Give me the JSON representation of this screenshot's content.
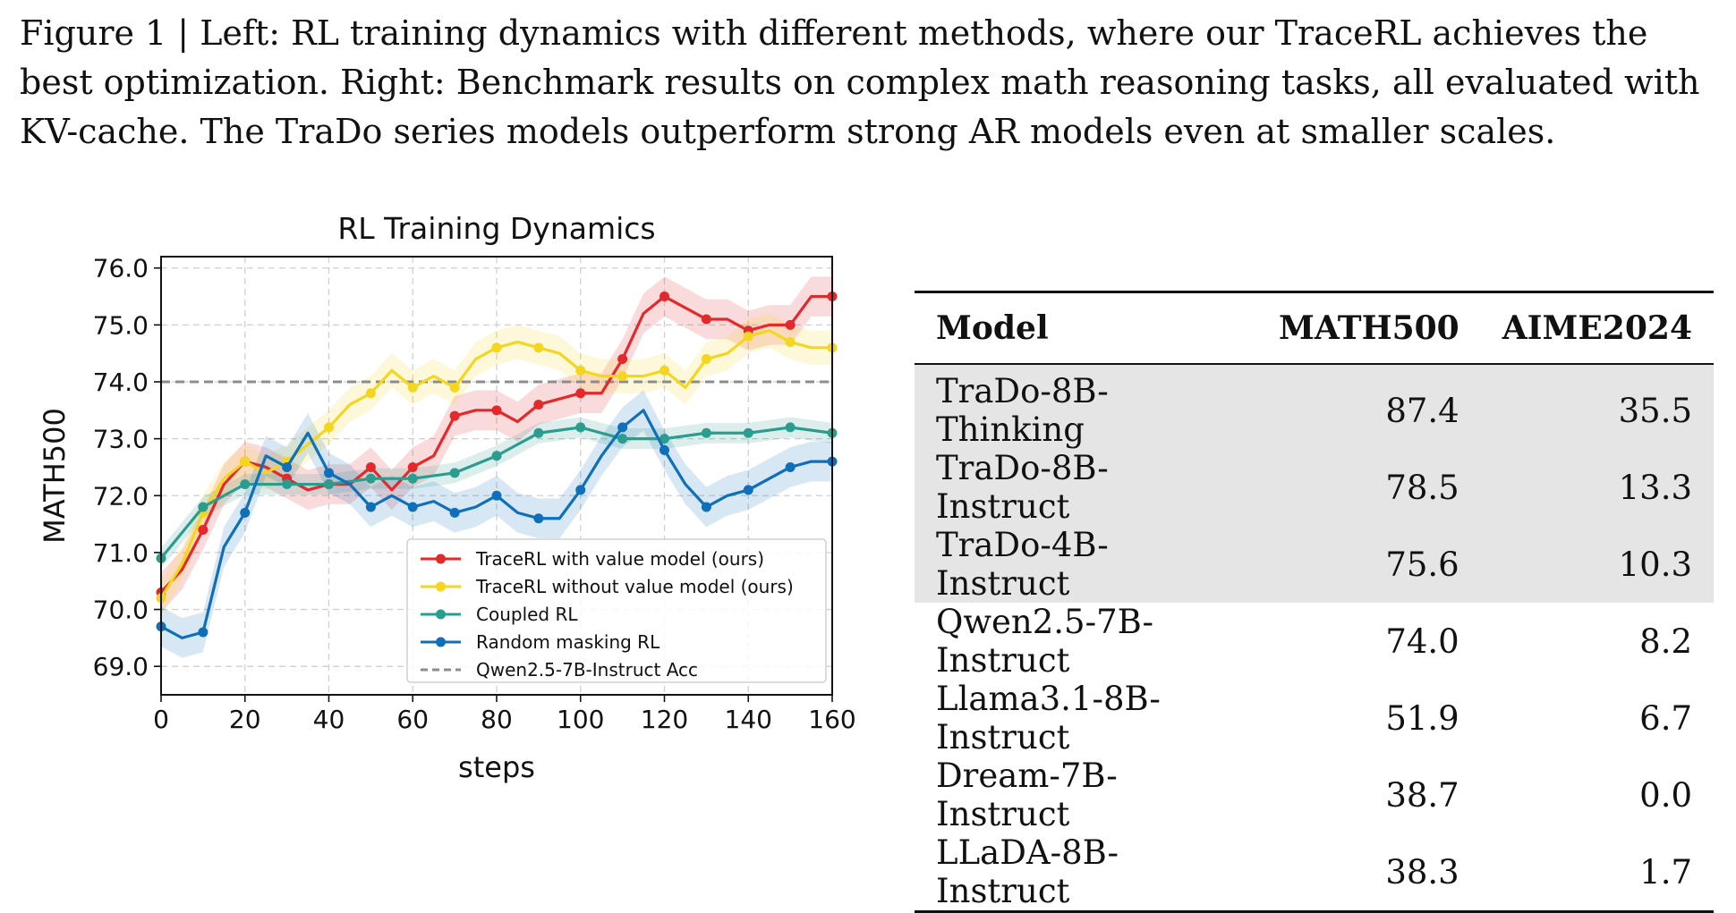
{
  "caption": "Figure 1 | Left: RL training dynamics with different methods, where our TraceRL achieves the best optimization. Right: Benchmark results on complex math reasoning tasks, all evaluated with KV-cache. The TraDo series models outperform strong AR models even at smaller scales.",
  "chart_data": {
    "type": "line",
    "title": "RL Training Dynamics",
    "xlabel": "steps",
    "ylabel": "MATH500",
    "xlim": [
      0,
      160
    ],
    "ylim": [
      68.5,
      76.2
    ],
    "xticks": [
      0,
      20,
      40,
      60,
      80,
      100,
      120,
      140,
      160
    ],
    "yticks": [
      69.0,
      70.0,
      71.0,
      72.0,
      73.0,
      74.0,
      75.0,
      76.0
    ],
    "grid": true,
    "legend_position": "lower-right",
    "reference_line": {
      "name": "Qwen2.5-7B-Instruct Acc",
      "y": 74.0,
      "color": "#8c8c8c"
    },
    "series": [
      {
        "name": "TraceRL with value model (ours)",
        "color": "#e3292b",
        "x": [
          0,
          5,
          10,
          15,
          20,
          25,
          30,
          35,
          40,
          45,
          50,
          55,
          60,
          65,
          70,
          75,
          80,
          85,
          90,
          95,
          100,
          105,
          110,
          115,
          120,
          125,
          130,
          135,
          140,
          145,
          150,
          155,
          160
        ],
        "y": [
          70.3,
          70.7,
          71.4,
          72.2,
          72.6,
          72.5,
          72.3,
          72.1,
          72.2,
          72.2,
          72.5,
          72.1,
          72.5,
          72.7,
          73.4,
          73.5,
          73.5,
          73.3,
          73.6,
          73.7,
          73.8,
          73.8,
          74.4,
          75.2,
          75.5,
          75.3,
          75.1,
          75.1,
          74.9,
          75.0,
          75.0,
          75.5,
          75.5
        ]
      },
      {
        "name": "TraceRL without value model (ours)",
        "color": "#f5d61f",
        "x": [
          0,
          5,
          10,
          15,
          20,
          25,
          30,
          35,
          40,
          45,
          50,
          55,
          60,
          65,
          70,
          75,
          80,
          85,
          90,
          95,
          100,
          105,
          110,
          115,
          120,
          125,
          130,
          135,
          140,
          145,
          150,
          155,
          160
        ],
        "y": [
          70.2,
          70.8,
          71.7,
          72.3,
          72.6,
          72.4,
          72.6,
          72.9,
          73.2,
          73.6,
          73.8,
          74.2,
          73.9,
          74.1,
          73.9,
          74.4,
          74.6,
          74.7,
          74.6,
          74.5,
          74.2,
          74.1,
          74.1,
          74.1,
          74.2,
          73.9,
          74.4,
          74.5,
          74.8,
          74.9,
          74.7,
          74.6,
          74.6
        ]
      },
      {
        "name": "Coupled RL",
        "color": "#2a9d8f",
        "x": [
          0,
          10,
          20,
          30,
          40,
          50,
          60,
          70,
          80,
          90,
          100,
          110,
          120,
          130,
          140,
          150,
          160
        ],
        "y": [
          70.9,
          71.8,
          72.2,
          72.2,
          72.2,
          72.3,
          72.3,
          72.4,
          72.7,
          73.1,
          73.2,
          73.0,
          73.0,
          73.1,
          73.1,
          73.2,
          73.1
        ]
      },
      {
        "name": "Random masking RL",
        "color": "#0f6fb8",
        "x": [
          0,
          5,
          10,
          15,
          20,
          25,
          30,
          35,
          40,
          45,
          50,
          55,
          60,
          65,
          70,
          75,
          80,
          85,
          90,
          95,
          100,
          105,
          110,
          115,
          120,
          125,
          130,
          135,
          140,
          145,
          150,
          155,
          160
        ],
        "y": [
          69.7,
          69.5,
          69.6,
          71.1,
          71.7,
          72.7,
          72.5,
          73.1,
          72.4,
          72.2,
          71.8,
          72.0,
          71.8,
          71.9,
          71.7,
          71.8,
          72.0,
          71.7,
          71.6,
          71.6,
          72.1,
          72.7,
          73.2,
          73.5,
          72.8,
          72.2,
          71.8,
          72.0,
          72.1,
          72.3,
          72.5,
          72.6,
          72.6
        ]
      }
    ]
  },
  "table": {
    "headers": [
      "Model",
      "MATH500",
      "AIME2024"
    ],
    "rows": [
      {
        "model": "TraDo-8B-Thinking",
        "math500": "87.4",
        "aime2024": "35.5"
      },
      {
        "model": "TraDo-8B-Instruct",
        "math500": "78.5",
        "aime2024": "13.3"
      },
      {
        "model": "TraDo-4B-Instruct",
        "math500": "75.6",
        "aime2024": "10.3"
      },
      {
        "model": "Qwen2.5-7B-Instruct",
        "math500": "74.0",
        "aime2024": "8.2"
      },
      {
        "model": "Llama3.1-8B-Instruct",
        "math500": "51.9",
        "aime2024": "6.7"
      },
      {
        "model": "Dream-7B-Instruct",
        "math500": "38.7",
        "aime2024": "0.0"
      },
      {
        "model": "LLaDA-8B-Instruct",
        "math500": "38.3",
        "aime2024": "1.7"
      }
    ]
  }
}
